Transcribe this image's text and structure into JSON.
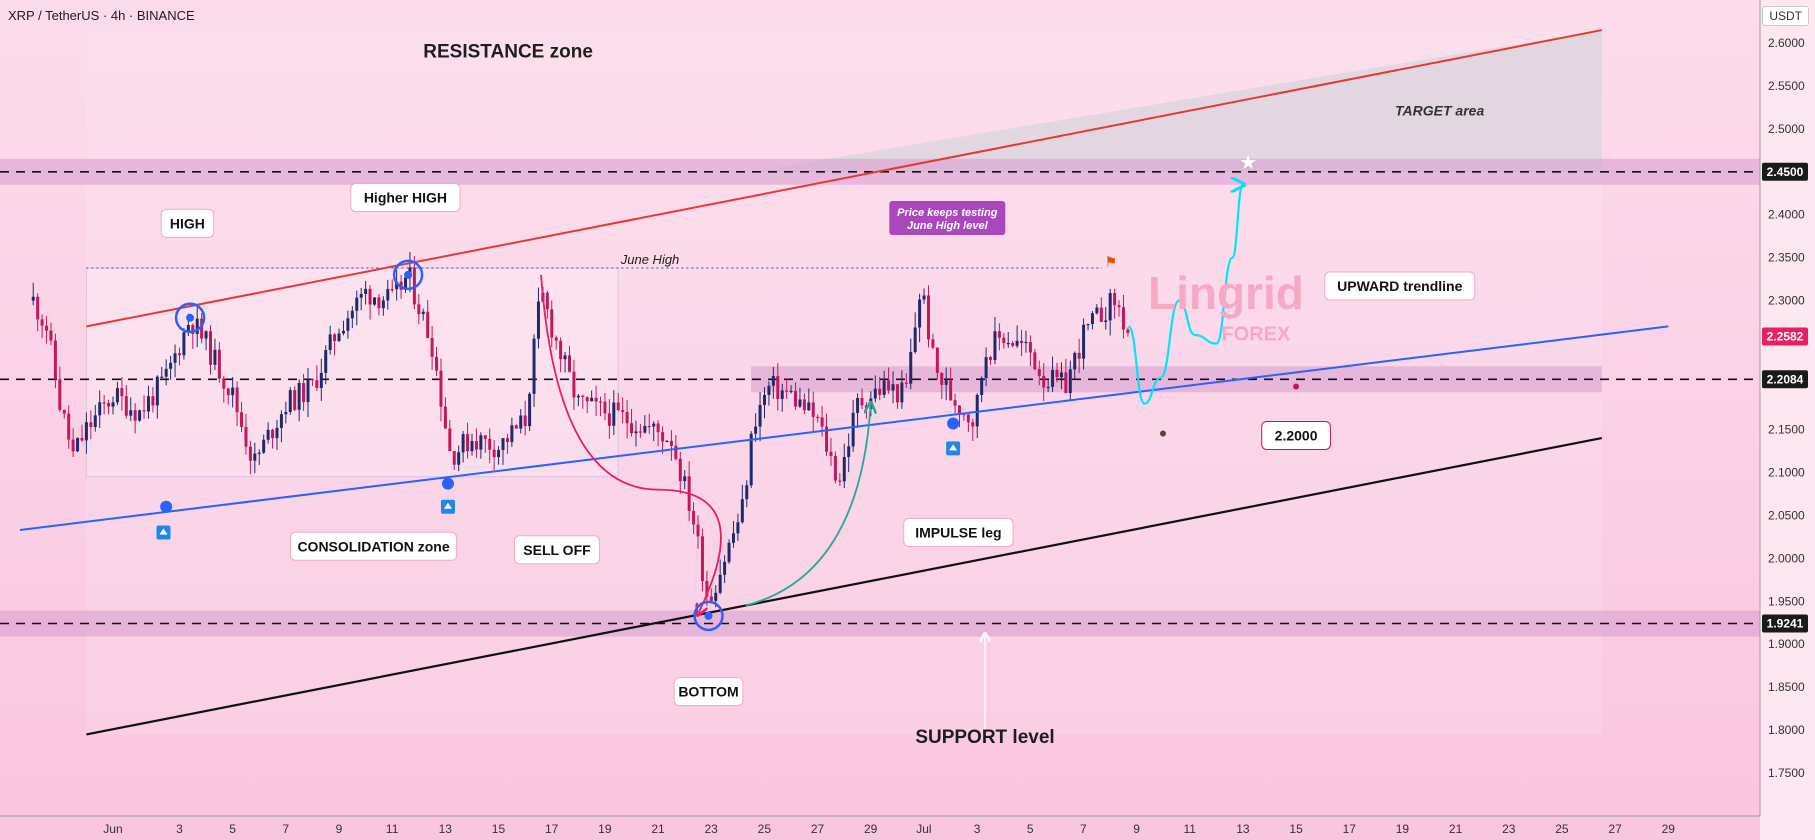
{
  "header": {
    "title": "XRP / TetherUS · 4h · BINANCE",
    "unit": "USDT"
  },
  "colors": {
    "bullish": "#1f2a6b",
    "bearish": "#c2185b",
    "resistance_line": "#e53935",
    "trendline": "#2962ff",
    "support_line": "#111111",
    "zone": "#d79ad0",
    "projection": "#00e5ff",
    "impulse_arrow": "#26a69a",
    "selloff_arrow": "#e91e63",
    "marker": "#2962ff"
  },
  "chart_data": {
    "type": "candlestick",
    "x": {
      "start_date": "2025-05-31",
      "ticks": [
        {
          "label": "Jun",
          "day": 0.5
        },
        {
          "label": "3",
          "day": 3
        },
        {
          "label": "5",
          "day": 5
        },
        {
          "label": "7",
          "day": 7
        },
        {
          "label": "9",
          "day": 9
        },
        {
          "label": "11",
          "day": 11
        },
        {
          "label": "13",
          "day": 13
        },
        {
          "label": "15",
          "day": 15
        },
        {
          "label": "17",
          "day": 17
        },
        {
          "label": "19",
          "day": 19
        },
        {
          "label": "21",
          "day": 21
        },
        {
          "label": "23",
          "day": 23
        },
        {
          "label": "25",
          "day": 25
        },
        {
          "label": "27",
          "day": 27
        },
        {
          "label": "29",
          "day": 29
        },
        {
          "label": "Jul",
          "day": 31
        },
        {
          "label": "3",
          "day": 33
        },
        {
          "label": "5",
          "day": 35
        },
        {
          "label": "7",
          "day": 37
        },
        {
          "label": "9",
          "day": 39
        },
        {
          "label": "11",
          "day": 41
        },
        {
          "label": "13",
          "day": 43
        },
        {
          "label": "15",
          "day": 45
        },
        {
          "label": "17",
          "day": 47
        },
        {
          "label": "19",
          "day": 49
        },
        {
          "label": "21",
          "day": 51
        },
        {
          "label": "23",
          "day": 53
        },
        {
          "label": "25",
          "day": 55
        },
        {
          "label": "27",
          "day": 57
        },
        {
          "label": "29",
          "day": 59
        }
      ]
    },
    "y": {
      "range": [
        1.7,
        2.65
      ],
      "ticks": [
        "2.6000",
        "2.5500",
        "2.5000",
        "2.4000",
        "2.3500",
        "2.3000",
        "2.1500",
        "2.1000",
        "2.0500",
        "2.0000",
        "1.9500",
        "1.9000",
        "1.8500",
        "1.8000",
        "1.7500"
      ],
      "price_badges": [
        {
          "value": "2.4500",
          "style": "dark"
        },
        {
          "value": "2.2582",
          "style": "red"
        },
        {
          "value": "2.2084",
          "style": "dark"
        },
        {
          "value": "1.9241",
          "style": "dark"
        }
      ]
    },
    "candles": {
      "bar_days": 0.1667,
      "key_points": [
        [
          -2.5,
          2.3
        ],
        [
          -2.0,
          2.27
        ],
        [
          -1.5,
          2.18
        ],
        [
          -1.0,
          2.12
        ],
        [
          -0.5,
          2.15
        ],
        [
          0.5,
          2.19
        ],
        [
          1.5,
          2.17
        ],
        [
          2.5,
          2.21
        ],
        [
          3.4,
          2.28
        ],
        [
          4.0,
          2.25
        ],
        [
          5.0,
          2.19
        ],
        [
          5.8,
          2.11
        ],
        [
          6.3,
          2.14
        ],
        [
          7.0,
          2.18
        ],
        [
          8.0,
          2.2
        ],
        [
          9.0,
          2.27
        ],
        [
          10.0,
          2.31
        ],
        [
          11.0,
          2.3
        ],
        [
          11.6,
          2.33
        ],
        [
          12.5,
          2.25
        ],
        [
          13.2,
          2.12
        ],
        [
          14.0,
          2.14
        ],
        [
          15.0,
          2.13
        ],
        [
          16.0,
          2.16
        ],
        [
          16.6,
          2.31
        ],
        [
          17.3,
          2.24
        ],
        [
          18.0,
          2.18
        ],
        [
          19.0,
          2.17
        ],
        [
          20.0,
          2.16
        ],
        [
          21.5,
          2.14
        ],
        [
          22.3,
          2.05
        ],
        [
          22.9,
          1.95
        ],
        [
          23.5,
          2.0
        ],
        [
          24.2,
          2.06
        ],
        [
          24.6,
          2.16
        ],
        [
          25.2,
          2.2
        ],
        [
          26.0,
          2.19
        ],
        [
          27.0,
          2.16
        ],
        [
          27.8,
          2.09
        ],
        [
          28.5,
          2.18
        ],
        [
          29.5,
          2.2
        ],
        [
          30.3,
          2.19
        ],
        [
          30.9,
          2.32
        ],
        [
          31.4,
          2.22
        ],
        [
          32.0,
          2.19
        ],
        [
          32.9,
          2.16
        ],
        [
          33.3,
          2.24
        ],
        [
          34.0,
          2.26
        ],
        [
          35.0,
          2.24
        ],
        [
          35.5,
          2.21
        ],
        [
          36.3,
          2.2
        ],
        [
          37.0,
          2.26
        ],
        [
          37.8,
          2.29
        ],
        [
          38.2,
          2.3
        ],
        [
          38.7,
          2.26
        ]
      ]
    },
    "levels": [
      {
        "id": "resistance-2450",
        "value": 2.45,
        "label": "2.4500"
      },
      {
        "id": "pivot-2208",
        "value": 2.2084,
        "label": "2.2084"
      },
      {
        "id": "support-1924",
        "value": 1.9241,
        "label": "1.9241"
      }
    ],
    "lines": {
      "resistance": [
        [
          -0.5,
          2.27
        ],
        [
          56.5,
          2.615
        ]
      ],
      "upward_trendline": [
        [
          -3.0,
          2.033
        ],
        [
          59.0,
          2.27
        ]
      ],
      "support": [
        [
          -0.5,
          1.795
        ],
        [
          56.5,
          2.14
        ]
      ],
      "june_high": [
        [
          -0.5,
          2.338
        ],
        [
          37.7,
          2.338
        ]
      ],
      "consolidation_box": [
        [
          -0.5,
          2.338
        ],
        [
          19.5,
          2.095
        ]
      ]
    },
    "projection": [
      [
        38.7,
        2.27
      ],
      [
        39.3,
        2.18
      ],
      [
        39.9,
        2.21
      ],
      [
        40.6,
        2.3
      ],
      [
        41.2,
        2.26
      ],
      [
        42.0,
        2.25
      ],
      [
        42.6,
        2.35
      ],
      [
        43.0,
        2.435
      ]
    ],
    "annotations": {
      "resistance_zone": "RESISTANCE zone",
      "target_area": "TARGET area",
      "high": "HIGH",
      "higher_high": "Higher HIGH",
      "june_high": "June High",
      "price_testing": "Price keeps testing June High level",
      "upward_trendline": "UPWARD trendline",
      "consolidation_zone": "CONSOLIDATION zone",
      "sell_off": "SELL OFF",
      "impulse_leg": "IMPULSE leg",
      "bottom": "BOTTOM",
      "support_level": "SUPPORT level",
      "target_value": "2.2000"
    },
    "watermark": {
      "name": "Lingrid",
      "sub": "FOREX"
    }
  }
}
